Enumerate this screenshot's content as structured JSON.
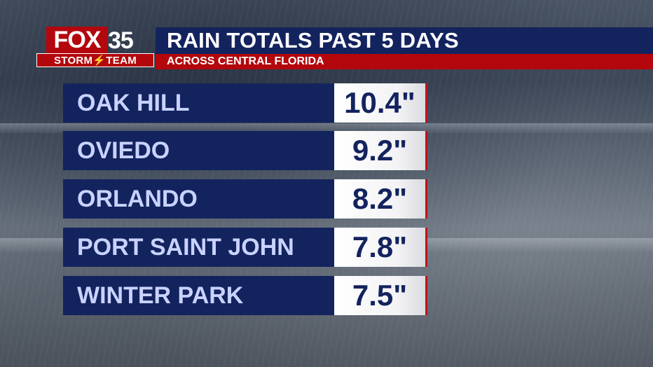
{
  "logo": {
    "brand": "FOX",
    "channel": "35",
    "team": "STORM⚡TEAM"
  },
  "header": {
    "title": "RAIN TOTALS PAST 5 DAYS",
    "subtitle": "ACROSS CENTRAL FLORIDA"
  },
  "rows": [
    {
      "location": "OAK HILL",
      "total": "10.4\""
    },
    {
      "location": "OVIEDO",
      "total": "9.2\""
    },
    {
      "location": "ORLANDO",
      "total": "8.2\""
    },
    {
      "location": "PORT SAINT JOHN",
      "total": "7.8\""
    },
    {
      "location": "WINTER PARK",
      "total": "7.5\""
    }
  ],
  "colors": {
    "navy": "#13235e",
    "red": "#b3070d",
    "label_text": "#c9d2ff"
  }
}
